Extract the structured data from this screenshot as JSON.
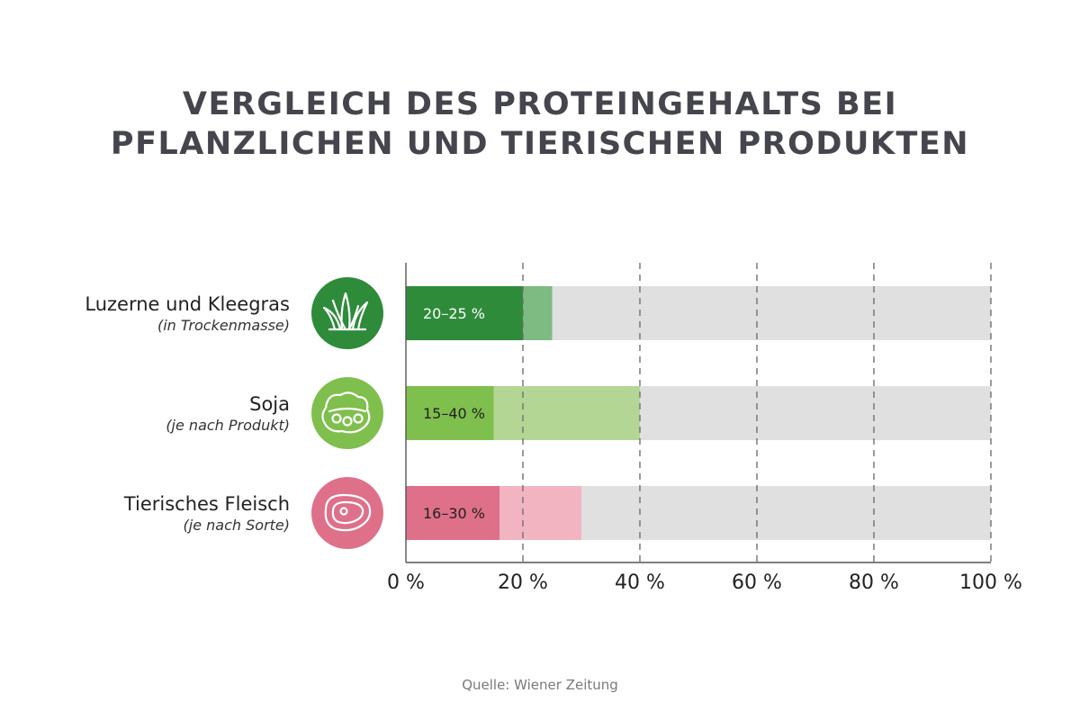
{
  "title": {
    "line1": "VERGLEICH DES PROTEINGEHALTS BEI",
    "line2": "PFLANZLICHEN UND TIERISCHEN PRODUKTEN"
  },
  "source": "Quelle: Wiener Zeitung",
  "chart_data": {
    "type": "bar",
    "orientation": "horizontal",
    "xlim": [
      0,
      100
    ],
    "grid": true,
    "xticks": [
      "0 %",
      "20 %",
      "40 %",
      "60 %",
      "80 %",
      "100 %"
    ],
    "tick_values": [
      0,
      20,
      40,
      60,
      80,
      100
    ],
    "categories": [
      {
        "label": "Luzerne und Kleegras",
        "sublabel": "(in Trockenmasse)",
        "icon": "grass-icon",
        "min": 20,
        "max": 25,
        "value_label": "20–25 %",
        "color_dark": "#2e8b3a",
        "color_light": "#7dbb82"
      },
      {
        "label": "Soja",
        "sublabel": "(je nach Produkt)",
        "icon": "soybean-icon",
        "min": 15,
        "max": 40,
        "value_label": "15–40 %",
        "color_dark": "#7fbf4d",
        "color_light": "#b4d694"
      },
      {
        "label": "Tierisches Fleisch",
        "sublabel": "(je nach Sorte)",
        "icon": "meat-icon",
        "min": 16,
        "max": 30,
        "value_label": "16–30 %",
        "color_dark": "#df7089",
        "color_light": "#f3b4c2"
      }
    ],
    "background_color": "#e0e0e0"
  }
}
